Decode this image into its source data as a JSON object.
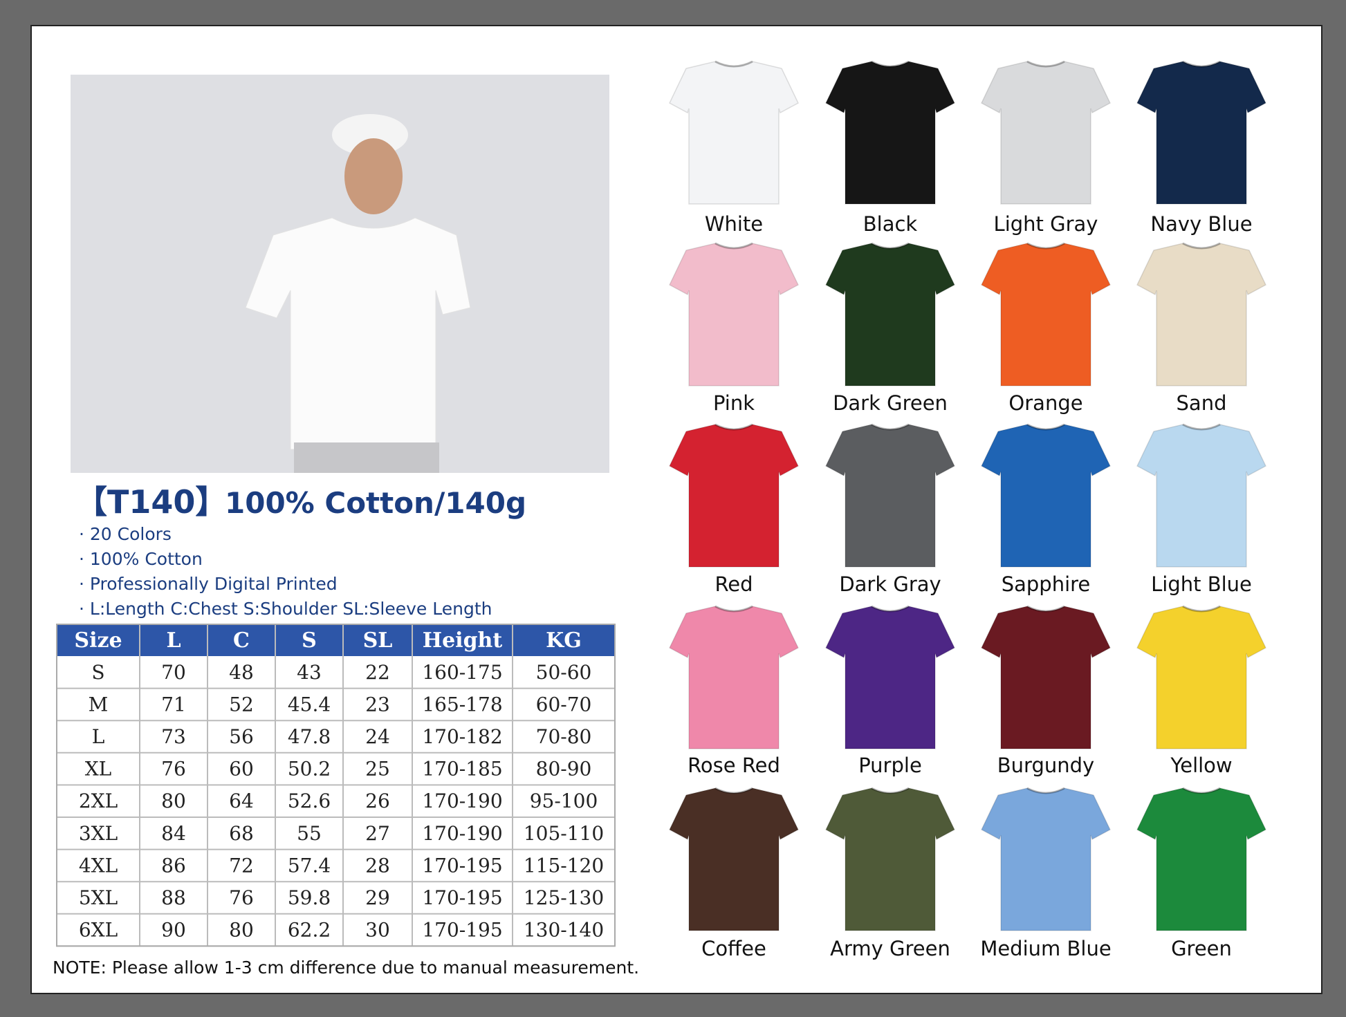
{
  "header": {
    "code": "【T140】",
    "title": "100% Cotton/140g"
  },
  "features": [
    "· 20 Colors",
    "· 100% Cotton",
    "· Professionally Digital Printed",
    "· L:Length C:Chest S:Shoulder SL:Sleeve Length"
  ],
  "table": {
    "header": [
      "Size",
      "L",
      "C",
      "S",
      "SL",
      "Height",
      "KG"
    ],
    "rows": [
      [
        "S",
        "70",
        "48",
        "43",
        "22",
        "160-175",
        "50-60"
      ],
      [
        "M",
        "71",
        "52",
        "45.4",
        "23",
        "165-178",
        "60-70"
      ],
      [
        "L",
        "73",
        "56",
        "47.8",
        "24",
        "170-182",
        "70-80"
      ],
      [
        "XL",
        "76",
        "60",
        "50.2",
        "25",
        "170-185",
        "80-90"
      ],
      [
        "2XL",
        "80",
        "64",
        "52.6",
        "26",
        "170-190",
        "95-100"
      ],
      [
        "3XL",
        "84",
        "68",
        "55",
        "27",
        "170-190",
        "105-110"
      ],
      [
        "4XL",
        "86",
        "72",
        "57.4",
        "28",
        "170-195",
        "115-120"
      ],
      [
        "5XL",
        "88",
        "76",
        "59.8",
        "29",
        "170-195",
        "125-130"
      ],
      [
        "6XL",
        "90",
        "80",
        "62.2",
        "30",
        "170-195",
        "130-140"
      ]
    ]
  },
  "note": "NOTE:  Please allow 1-3 cm difference due to manual measurement.",
  "colors": [
    {
      "name": "White",
      "color": "#f3f4f6"
    },
    {
      "name": "Black",
      "color": "#161616"
    },
    {
      "name": "Light Gray",
      "color": "#d9dadc"
    },
    {
      "name": "Navy Blue",
      "color": "#13294b"
    },
    {
      "name": "Pink",
      "color": "#f2bccb"
    },
    {
      "name": "Dark Green",
      "color": "#1f3a1e"
    },
    {
      "name": "Orange",
      "color": "#ee5d23"
    },
    {
      "name": "Sand",
      "color": "#e8dcc6"
    },
    {
      "name": "Red",
      "color": "#d42230"
    },
    {
      "name": "Dark Gray",
      "color": "#5b5d60"
    },
    {
      "name": "Sapphire",
      "color": "#1f64b4"
    },
    {
      "name": "Light Blue",
      "color": "#b9d8ef"
    },
    {
      "name": "Rose Red",
      "color": "#ef88aa"
    },
    {
      "name": "Purple",
      "color": "#4d2685"
    },
    {
      "name": "Burgundy",
      "color": "#6a1a22"
    },
    {
      "name": "Yellow",
      "color": "#f4d12c"
    },
    {
      "name": "Coffee",
      "color": "#4a2f25"
    },
    {
      "name": "Army Green",
      "color": "#4f5a38"
    },
    {
      "name": "Medium Blue",
      "color": "#7aa7dc"
    },
    {
      "name": "Green",
      "color": "#1c8a3c"
    }
  ]
}
